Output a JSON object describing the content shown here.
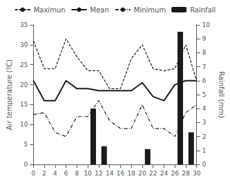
{
  "chart_data": {
    "type": "line",
    "x": [
      0,
      2,
      4,
      6,
      8,
      10,
      12,
      14,
      16,
      18,
      20,
      22,
      24,
      26,
      28,
      30
    ],
    "series": [
      {
        "name": "Maximun",
        "type": "line",
        "line_style": "dashed",
        "color": "#1a1a1a",
        "values": [
          31,
          24,
          24,
          31.5,
          27,
          23.5,
          23.5,
          19,
          19,
          26.5,
          30,
          24,
          23.5,
          24,
          30,
          21
        ]
      },
      {
        "name": "Mean",
        "type": "line",
        "line_style": "solid",
        "color": "#1a1a1a",
        "values": [
          21,
          16,
          16,
          21,
          19,
          19,
          18.5,
          18.5,
          18.5,
          18.5,
          20.5,
          17,
          16,
          20,
          21,
          21
        ]
      },
      {
        "name": "Minimum",
        "type": "line",
        "line_style": "dashdot",
        "color": "#1a1a1a",
        "values": [
          12.5,
          13,
          8,
          7,
          12,
          12,
          16,
          11,
          9,
          9,
          15,
          9,
          9,
          7,
          13,
          15
        ]
      },
      {
        "name": "Rainfall",
        "type": "bar",
        "axis": "y2",
        "color": "#1a1a1a",
        "x": [
          11,
          13,
          21,
          27,
          29
        ],
        "values": [
          4,
          1.3,
          1.1,
          9.5,
          2.3
        ]
      }
    ],
    "xlim": [
      0,
      30
    ],
    "xticks": [
      0,
      2,
      4,
      6,
      8,
      10,
      12,
      14,
      16,
      18,
      20,
      22,
      24,
      26,
      28,
      30
    ],
    "ylim": [
      0,
      35
    ],
    "yticks": [
      0,
      5,
      10,
      15,
      20,
      25,
      30,
      35
    ],
    "y2lim": [
      0,
      10
    ],
    "y2ticks": [
      0,
      1,
      2,
      3,
      4,
      5,
      6,
      7,
      8,
      9,
      10
    ],
    "ylabel": "Air temperature (ºC)",
    "y2label": "Rainfall (mm)",
    "grid": false,
    "legend": "top"
  }
}
